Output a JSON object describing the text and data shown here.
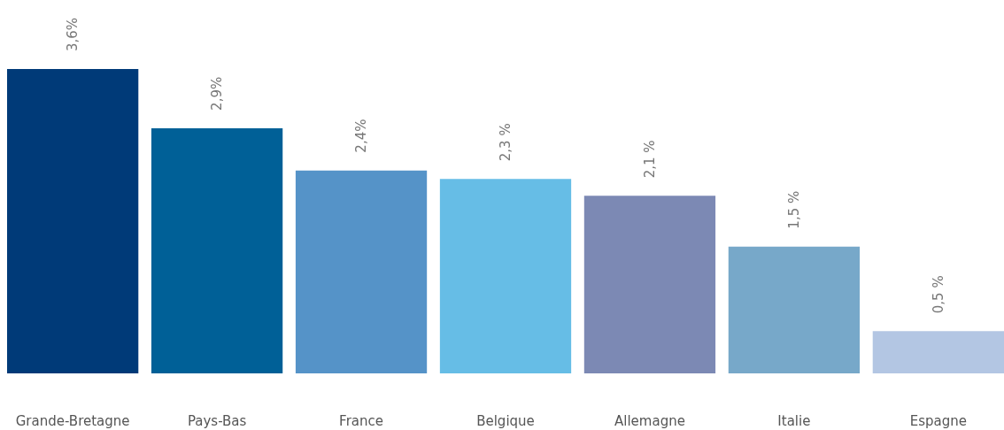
{
  "chart_data": {
    "type": "bar",
    "categories": [
      "Grande-Bretagne",
      "Pays-Bas",
      "France",
      "Belgique",
      "Allemagne",
      "Italie",
      "Espagne"
    ],
    "values": [
      3.6,
      2.9,
      2.4,
      2.3,
      2.1,
      1.5,
      0.5
    ],
    "value_labels": [
      "3,6%",
      "2,9%",
      "2,4%",
      "2,3 %",
      "2,1 %",
      "1,5 %",
      "0,5 %"
    ],
    "colors": [
      "#003a78",
      "#006097",
      "#5593c8",
      "#66bde6",
      "#7c89b4",
      "#77a8c9",
      "#b3c6e3"
    ]
  }
}
